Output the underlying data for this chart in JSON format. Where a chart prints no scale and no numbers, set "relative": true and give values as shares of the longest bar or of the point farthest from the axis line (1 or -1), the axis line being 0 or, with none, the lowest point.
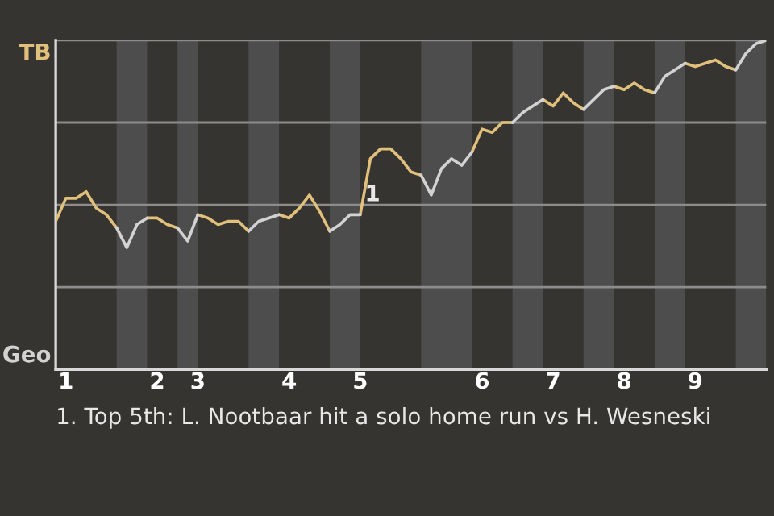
{
  "chart_data": {
    "type": "line",
    "relative": true,
    "categories": [
      null,
      "1",
      null,
      null,
      null,
      null,
      null,
      null,
      null,
      null,
      "2",
      null,
      null,
      null,
      "3",
      null,
      null,
      null,
      null,
      null,
      null,
      null,
      null,
      "4",
      null,
      null,
      null,
      null,
      null,
      null,
      "5",
      null,
      null,
      null,
      null,
      null,
      null,
      null,
      null,
      null,
      null,
      null,
      "6",
      null,
      null,
      null,
      null,
      null,
      null,
      "7",
      null,
      null,
      null,
      null,
      null,
      null,
      "8",
      null,
      null,
      null,
      null,
      null,
      null,
      "9",
      null,
      null,
      null,
      null,
      null,
      null,
      null
    ],
    "series": [
      {
        "color": "#e0c07a",
        "values": [
          0.45,
          0.52,
          0.52,
          0.54,
          0.49,
          0.47,
          0.43,
          null,
          null,
          0.46,
          0.46,
          0.44,
          0.43,
          null,
          0.47,
          0.46,
          0.44,
          0.45,
          0.45,
          0.42,
          null,
          null,
          0.47,
          0.46,
          0.49,
          0.53,
          0.48,
          0.42,
          null,
          null,
          0.47,
          0.64,
          0.67,
          0.67,
          0.64,
          0.6,
          0.59,
          null,
          null,
          null,
          null,
          0.66,
          0.73,
          0.72,
          0.75,
          0.75,
          null,
          null,
          0.82,
          0.8,
          0.84,
          0.81,
          0.79,
          null,
          null,
          0.86,
          0.85,
          0.87,
          0.85,
          0.84,
          null,
          null,
          0.93,
          0.92,
          0.93,
          0.94,
          0.92,
          0.91,
          null,
          null,
          null
        ]
      },
      {
        "color": "#d2d2d2",
        "values": [
          null,
          null,
          null,
          null,
          null,
          null,
          0.43,
          0.37,
          0.44,
          0.46,
          null,
          null,
          0.43,
          0.39,
          0.47,
          null,
          null,
          null,
          null,
          0.42,
          0.45,
          0.46,
          0.47,
          null,
          null,
          null,
          null,
          0.42,
          0.44,
          0.47,
          0.47,
          null,
          null,
          null,
          null,
          null,
          0.59,
          0.53,
          0.61,
          0.64,
          0.62,
          0.66,
          null,
          null,
          null,
          0.75,
          0.78,
          0.8,
          0.82,
          null,
          null,
          null,
          0.79,
          0.82,
          0.85,
          0.86,
          null,
          null,
          null,
          0.84,
          0.89,
          0.91,
          0.93,
          null,
          null,
          null,
          null,
          0.91,
          0.96,
          0.99,
          1
        ]
      }
    ],
    "marker": "none",
    "ref_lines": [
      {
        "axis": "y",
        "value": 0.25,
        "color": "#8c8c8c"
      },
      {
        "axis": "y",
        "value": 0.5,
        "color": "#8c8c8c"
      },
      {
        "axis": "y",
        "value": 0.75,
        "color": "#8c8c8c"
      },
      {
        "axis": "y",
        "value": 1,
        "color": "#8c8c8c"
      }
    ],
    "annotations": [
      "TB",
      "Geo",
      {
        "text": "1",
        "x": "5",
        "y": 0.47
      },
      "1. Top 5th: L. Nootbaar hit a solo home run vs H. Wesneski"
    ]
  }
}
